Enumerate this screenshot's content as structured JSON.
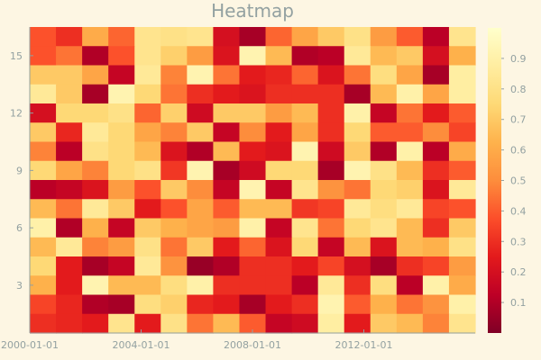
{
  "chart_data": {
    "type": "heatmap",
    "title": "Heatmap",
    "xlabel": "",
    "ylabel": "",
    "x_tick_labels": [
      "2000-01-01",
      "2004-01-01",
      "2008-01-01",
      "2012-01-01"
    ],
    "x_tick_positions": [
      2000,
      2004,
      2008,
      2012
    ],
    "x_range": [
      2000,
      2016
    ],
    "y_tick_labels": [
      "3",
      "6",
      "9",
      "12",
      "15"
    ],
    "y_tick_positions": [
      3,
      6,
      9,
      12,
      15
    ],
    "y_range": [
      0.5,
      16.5
    ],
    "colorbar_ticks": [
      "0.1",
      "0.2",
      "0.3",
      "0.4",
      "0.5",
      "0.6",
      "0.7",
      "0.8",
      "0.9"
    ],
    "colorbar_tick_values": [
      0.1,
      0.2,
      0.3,
      0.4,
      0.5,
      0.6,
      0.7,
      0.8,
      0.9
    ],
    "colorbar_range": [
      0,
      1
    ],
    "colormap": [
      "#800026",
      "#bd0026",
      "#e31a1c",
      "#fc4e2a",
      "#fd8d3c",
      "#feb24c",
      "#fed976",
      "#ffeda0",
      "#ffffcc"
    ],
    "rows": [
      {
        "y": 16,
        "values": [
          0.38,
          0.3,
          0.6,
          0.42,
          0.82,
          0.8,
          0.82,
          0.2,
          0.08,
          0.42,
          0.58,
          0.7,
          0.8,
          0.55,
          0.4,
          0.12,
          0.82
        ]
      },
      {
        "y": 15,
        "values": [
          0.38,
          0.45,
          0.1,
          0.38,
          0.82,
          0.72,
          0.55,
          0.22,
          0.92,
          0.65,
          0.1,
          0.12,
          0.85,
          0.65,
          0.7,
          0.2,
          0.62
        ]
      },
      {
        "y": 14,
        "values": [
          0.7,
          0.7,
          0.58,
          0.15,
          0.85,
          0.48,
          0.92,
          0.45,
          0.25,
          0.28,
          0.42,
          0.22,
          0.45,
          0.78,
          0.58,
          0.08,
          0.88
        ]
      },
      {
        "y": 13,
        "values": [
          0.85,
          0.7,
          0.08,
          0.92,
          0.75,
          0.45,
          0.3,
          0.25,
          0.22,
          0.3,
          0.3,
          0.3,
          0.08,
          0.65,
          0.9,
          0.58,
          0.88
        ]
      },
      {
        "y": 12,
        "values": [
          0.2,
          0.75,
          0.75,
          0.8,
          0.42,
          0.72,
          0.18,
          0.7,
          0.7,
          0.55,
          0.65,
          0.3,
          0.9,
          0.15,
          0.45,
          0.25,
          0.4
        ]
      },
      {
        "y": 11,
        "values": [
          0.7,
          0.28,
          0.85,
          0.75,
          0.58,
          0.48,
          0.7,
          0.15,
          0.5,
          0.25,
          0.58,
          0.3,
          0.75,
          0.4,
          0.4,
          0.5,
          0.35
        ]
      },
      {
        "y": 10,
        "values": [
          0.48,
          0.12,
          0.8,
          0.75,
          0.65,
          0.22,
          0.1,
          0.65,
          0.25,
          0.22,
          0.92,
          0.18,
          0.7,
          0.1,
          0.9,
          0.12,
          0.6
        ]
      },
      {
        "y": 9,
        "values": [
          0.75,
          0.58,
          0.48,
          0.75,
          0.8,
          0.32,
          0.92,
          0.08,
          0.18,
          0.75,
          0.75,
          0.08,
          0.92,
          0.8,
          0.65,
          0.3,
          0.4
        ]
      },
      {
        "y": 8,
        "values": [
          0.12,
          0.15,
          0.22,
          0.55,
          0.38,
          0.7,
          0.5,
          0.15,
          0.92,
          0.15,
          0.82,
          0.52,
          0.45,
          0.75,
          0.72,
          0.22,
          0.85
        ]
      },
      {
        "y": 7,
        "values": [
          0.65,
          0.45,
          0.85,
          0.7,
          0.25,
          0.38,
          0.58,
          0.4,
          0.65,
          0.65,
          0.32,
          0.35,
          0.85,
          0.78,
          0.85,
          0.35,
          0.38
        ]
      },
      {
        "y": 6,
        "values": [
          0.9,
          0.1,
          0.62,
          0.15,
          0.7,
          0.62,
          0.58,
          0.55,
          0.9,
          0.15,
          0.82,
          0.45,
          0.75,
          0.82,
          0.65,
          0.3,
          0.7
        ]
      },
      {
        "y": 5,
        "values": [
          0.65,
          0.85,
          0.48,
          0.55,
          0.8,
          0.45,
          0.7,
          0.25,
          0.42,
          0.22,
          0.75,
          0.15,
          0.65,
          0.22,
          0.65,
          0.62,
          0.8
        ]
      },
      {
        "y": 4,
        "values": [
          0.75,
          0.25,
          0.08,
          0.15,
          0.85,
          0.52,
          0.05,
          0.1,
          0.3,
          0.3,
          0.25,
          0.35,
          0.2,
          0.08,
          0.3,
          0.35,
          0.55
        ]
      },
      {
        "y": 3,
        "values": [
          0.62,
          0.25,
          0.92,
          0.65,
          0.65,
          0.78,
          0.9,
          0.3,
          0.3,
          0.3,
          0.12,
          0.85,
          0.3,
          0.78,
          0.12,
          0.9,
          0.6
        ]
      },
      {
        "y": 2,
        "values": [
          0.35,
          0.28,
          0.1,
          0.08,
          0.78,
          0.72,
          0.28,
          0.25,
          0.08,
          0.25,
          0.3,
          0.92,
          0.4,
          0.62,
          0.45,
          0.52,
          0.9
        ]
      },
      {
        "y": 1,
        "values": [
          0.3,
          0.28,
          0.25,
          0.82,
          0.25,
          0.8,
          0.45,
          0.65,
          0.4,
          0.15,
          0.18,
          0.88,
          0.25,
          0.7,
          0.65,
          0.48,
          0.82
        ]
      }
    ]
  }
}
